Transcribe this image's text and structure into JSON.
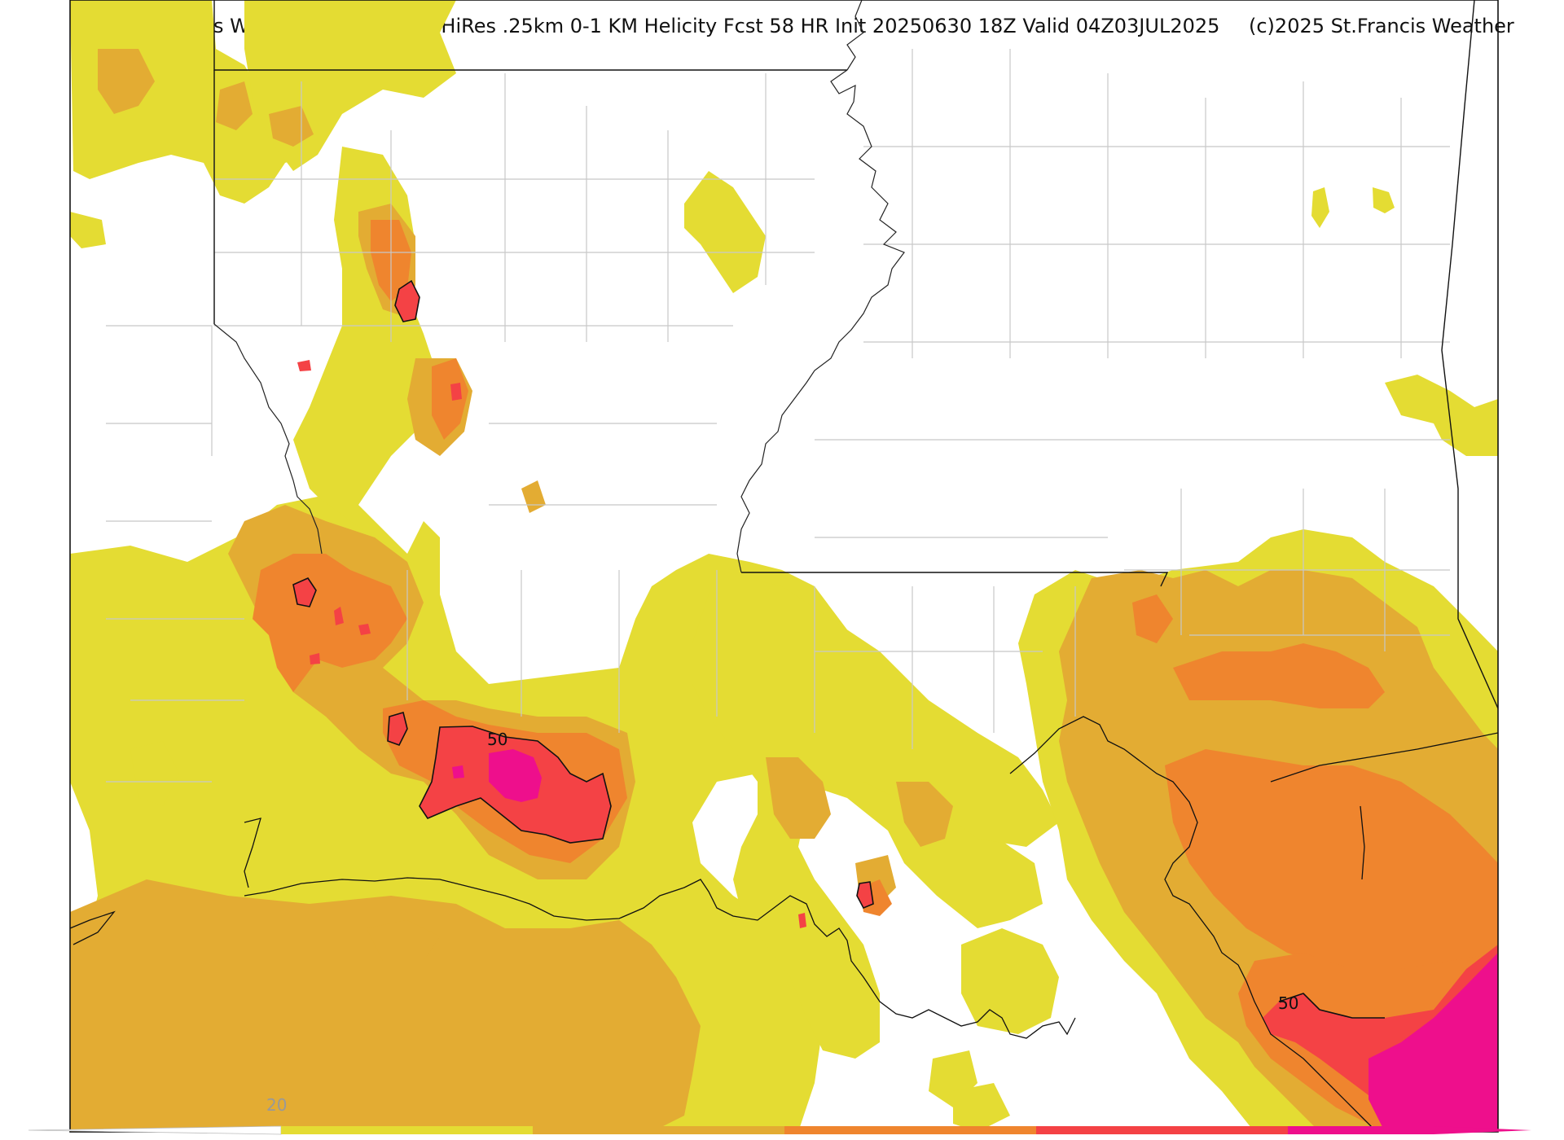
{
  "title": {
    "main": "St-Francis Weather-Center NAM HiRes .25km 0-1 KM Helicity Fcst 58 HR Init 20250630 18Z  Valid 04Z03JUL2025",
    "copyright": "(c)2025 St.Francis Weather"
  },
  "contour_labels": [
    "50",
    "50"
  ],
  "colorbar": {
    "tick_label": "20",
    "levels": [
      20,
      30,
      40,
      50,
      60
    ],
    "colors": [
      "#e4dc33",
      "#e3ac33",
      "#ef852e",
      "#f44245",
      "#ee0f8c"
    ]
  }
}
